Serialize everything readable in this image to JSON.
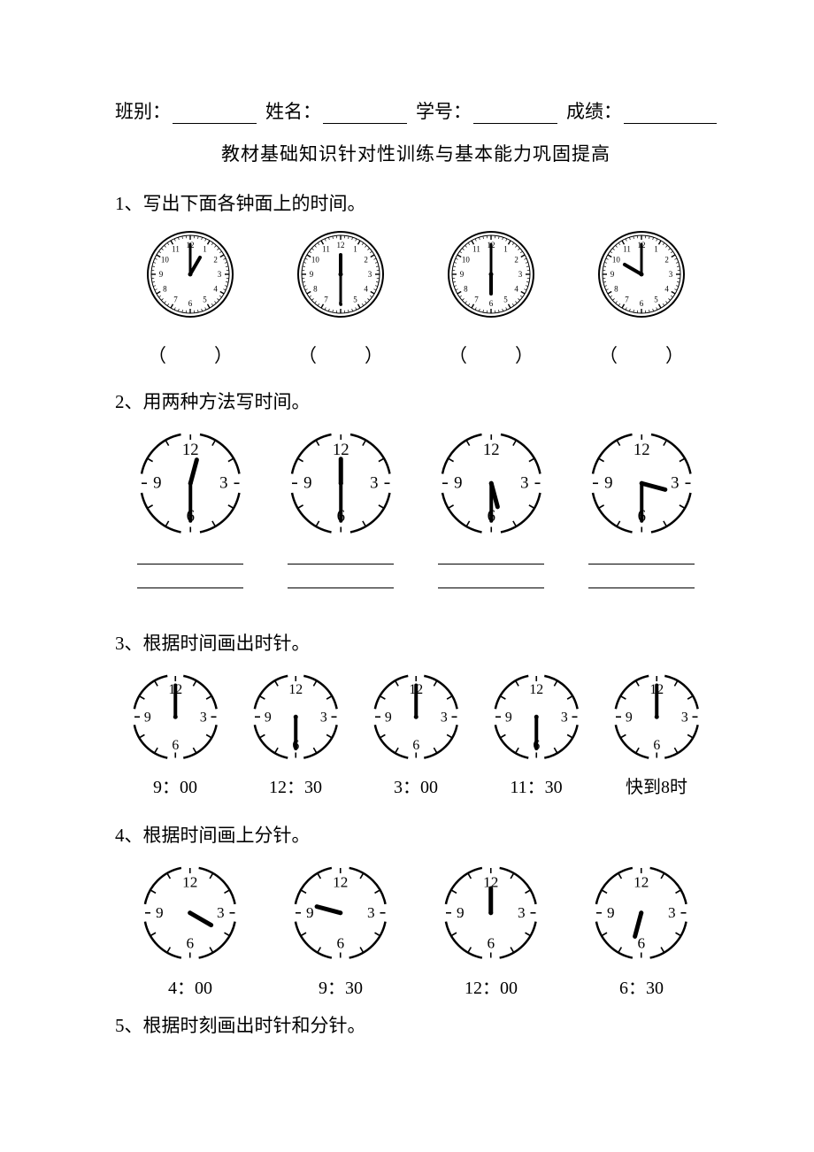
{
  "header": {
    "class_label": "班别：",
    "name_label": "姓名：",
    "id_label": "学号：",
    "score_label": "成绩："
  },
  "subtitle": "教材基础知识针对性训练与基本能力巩固提高",
  "q1": {
    "text": "1、写出下面各钟面上的时间。",
    "clocks": [
      {
        "style": "detailed",
        "hour_hand_angle": 30,
        "minute_hand_angle": 0,
        "hour_len": 22,
        "minute_len": 34
      },
      {
        "style": "detailed",
        "hour_hand_angle": 0,
        "minute_hand_angle": 180,
        "hour_len": 22,
        "minute_len": 34
      },
      {
        "style": "detailed",
        "hour_hand_angle": 180,
        "minute_hand_angle": 0,
        "hour_len": 22,
        "minute_len": 34
      },
      {
        "style": "detailed",
        "hour_hand_angle": 300,
        "minute_hand_angle": 0,
        "hour_len": 22,
        "minute_len": 34
      }
    ]
  },
  "q2": {
    "text": "2、用两种方法写时间。",
    "clocks": [
      {
        "style": "simple",
        "hour_hand_angle": 15,
        "minute_hand_angle": 180,
        "hour_len": 22,
        "minute_len": 34
      },
      {
        "style": "simple",
        "hour_hand_angle": 0,
        "minute_hand_angle": 180,
        "hour_len": 22,
        "minute_len": 34
      },
      {
        "style": "simple",
        "hour_hand_angle": 165,
        "minute_hand_angle": 180,
        "hour_len": 22,
        "minute_len": 34
      },
      {
        "style": "simple",
        "hour_hand_angle": 105,
        "minute_hand_angle": 180,
        "hour_len": 22,
        "minute_len": 34
      }
    ]
  },
  "q3": {
    "text": "3、根据时间画出时针。",
    "clocks": [
      {
        "style": "simple",
        "minute_hand_angle": 0,
        "hour_hand_angle": null,
        "minute_len": 34,
        "caption": "9：00"
      },
      {
        "style": "simple",
        "minute_hand_angle": 180,
        "hour_hand_angle": null,
        "minute_len": 34,
        "caption": "12：30"
      },
      {
        "style": "simple",
        "minute_hand_angle": 0,
        "hour_hand_angle": null,
        "minute_len": 34,
        "caption": "3：00"
      },
      {
        "style": "simple",
        "minute_hand_angle": 180,
        "hour_hand_angle": null,
        "minute_len": 34,
        "caption": "11：30"
      },
      {
        "style": "simple",
        "minute_hand_angle": 0,
        "hour_hand_angle": null,
        "minute_len": 34,
        "caption": "快到8时"
      }
    ]
  },
  "q4": {
    "text": "4、根据时间画上分针。",
    "clocks": [
      {
        "style": "simple",
        "hour_hand_angle": 120,
        "minute_hand_angle": null,
        "hour_len": 24,
        "caption": "4：00"
      },
      {
        "style": "simple",
        "hour_hand_angle": 285,
        "minute_hand_angle": null,
        "hour_len": 24,
        "caption": "9：30"
      },
      {
        "style": "simple",
        "hour_hand_angle": 0,
        "minute_hand_angle": null,
        "hour_len": 24,
        "caption": "12：00"
      },
      {
        "style": "simple",
        "hour_hand_angle": 195,
        "minute_hand_angle": null,
        "hour_len": 24,
        "caption": "6：30"
      }
    ]
  },
  "q5": {
    "text": "5、根据时刻画出时针和分针。"
  },
  "clock_render": {
    "detailed": {
      "radius": 48,
      "inner_radius": 44,
      "number_radius": 33,
      "numbers": [
        "12",
        "1",
        "2",
        "3",
        "4",
        "5",
        "6",
        "7",
        "8",
        "9",
        "10",
        "11"
      ],
      "font_size": 9,
      "stroke": "#000000",
      "stroke_width": 2,
      "tick_major_len": 5,
      "tick_minor_len": 3,
      "show_minor_ticks": true,
      "show_double_ring": true
    },
    "simple": {
      "radius": 45,
      "number_radius": 30,
      "numbers_shown": {
        "12": 0,
        "3": 90,
        "6": 180,
        "9": 270
      },
      "font_size": 15,
      "stroke": "#000000",
      "stroke_width": 2.5,
      "tick_len": 6,
      "show_minor_ticks": false,
      "show_double_ring": false,
      "arc_gap_deg": 22
    },
    "hand_stroke_width_hour": 4,
    "hand_stroke_width_minute": 3,
    "center_dot_r": 2.5
  }
}
